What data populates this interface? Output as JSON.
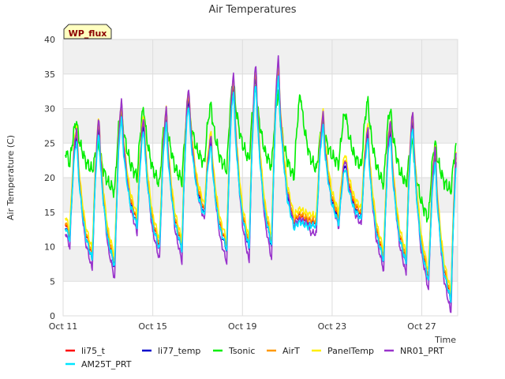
{
  "chart_data": {
    "type": "line",
    "title": "Air Temperatures",
    "xlabel": "Time",
    "ylabel": "Air Temperature (C)",
    "tag": "WP_flux",
    "ylim": [
      0,
      40
    ],
    "yticks": [
      0,
      5,
      10,
      15,
      20,
      25,
      30,
      35,
      40
    ],
    "xlim": [
      0,
      17.6
    ],
    "x_unit": "days from Oct 11",
    "xticks": [
      {
        "x": 0,
        "label": "Oct 11"
      },
      {
        "x": 4,
        "label": "Oct 15"
      },
      {
        "x": 8,
        "label": "Oct 19"
      },
      {
        "x": 12,
        "label": "Oct 23"
      },
      {
        "x": 16,
        "label": "Oct 27"
      }
    ],
    "grid": true,
    "legend_position": "bottom",
    "daily_max": [
      26.0,
      27.0,
      29.5,
      27.5,
      28.5,
      31.5,
      25.0,
      33.5,
      34.5,
      35.5,
      14.0,
      28.0,
      22.0,
      26.0,
      27.0,
      28.0,
      23.0,
      24.5
    ],
    "daily_min": [
      11.0,
      8.0,
      7.0,
      13.0,
      9.5,
      9.5,
      14.5,
      9.5,
      9.5,
      10.0,
      13.0,
      13.0,
      13.5,
      14.0,
      8.0,
      7.5,
      5.0,
      2.0
    ],
    "tsonic_max": [
      28.0,
      24.5,
      30.0,
      30.0,
      29.0,
      30.5,
      30.5,
      34.0,
      33.0,
      32.0,
      32.0,
      27.5,
      29.5,
      31.0,
      30.0,
      25.0,
      25.0,
      25.5
    ],
    "tsonic_min": [
      22.0,
      21.0,
      18.0,
      20.0,
      19.0,
      19.5,
      22.0,
      21.0,
      22.5,
      21.5,
      20.0,
      21.0,
      22.0,
      21.5,
      19.0,
      19.0,
      14.0,
      18.0
    ],
    "series": [
      {
        "name": "li75_t",
        "color": "#ff0000",
        "offset": 0.6,
        "amp": 1.0,
        "style": "day"
      },
      {
        "name": "li77_temp",
        "color": "#0000cc",
        "offset": 0.0,
        "amp": 1.0,
        "style": "day"
      },
      {
        "name": "Tsonic",
        "color": "#00ee00",
        "offset": 0.0,
        "amp": 1.0,
        "style": "sonic"
      },
      {
        "name": "AirT",
        "color": "#ff9900",
        "offset": 0.8,
        "amp": 1.0,
        "style": "day"
      },
      {
        "name": "PanelTemp",
        "color": "#ffee00",
        "offset": 1.5,
        "amp": 1.0,
        "style": "day"
      },
      {
        "name": "NR01_PRT",
        "color": "#9933cc",
        "offset": 0.0,
        "amp": 1.15,
        "style": "day"
      },
      {
        "name": "AM25T_PRT",
        "color": "#00e5ff",
        "offset": -0.4,
        "amp": 0.95,
        "style": "day"
      }
    ]
  }
}
